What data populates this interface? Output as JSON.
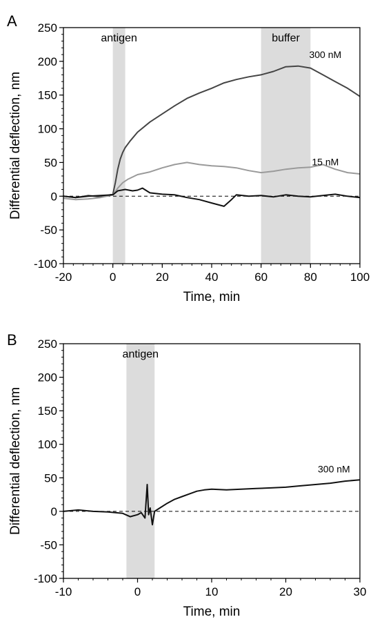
{
  "chart_data": [
    {
      "panel": "A",
      "type": "line",
      "xlabel": "Time, min",
      "ylabel": "Differential deflection, nm",
      "xlim": [
        -20,
        100
      ],
      "ylim": [
        -100,
        250
      ],
      "xticks": [
        -20,
        0,
        20,
        40,
        60,
        80,
        100
      ],
      "yticks": [
        -100,
        -50,
        0,
        50,
        100,
        150,
        200,
        250
      ],
      "baseline": 0,
      "bands": [
        {
          "label": "antigen",
          "x0": 0,
          "x1": 5
        },
        {
          "label": "buffer",
          "x0": 60,
          "x1": 80
        }
      ],
      "series": [
        {
          "name": "300 nM",
          "color": "#444444",
          "x": [
            -20,
            -15,
            -10,
            -5,
            0,
            1,
            2,
            3,
            4,
            5,
            7,
            10,
            15,
            20,
            25,
            30,
            35,
            40,
            45,
            50,
            55,
            60,
            65,
            70,
            75,
            80,
            85,
            90,
            95,
            100
          ],
          "y": [
            0,
            -2,
            1,
            -1,
            3,
            20,
            40,
            55,
            65,
            72,
            82,
            95,
            110,
            122,
            134,
            145,
            153,
            160,
            168,
            173,
            177,
            180,
            185,
            192,
            193,
            190,
            180,
            170,
            160,
            148
          ]
        },
        {
          "name": "15 nM",
          "color": "#9a9a9a",
          "x": [
            -20,
            -15,
            -10,
            -5,
            0,
            2,
            4,
            6,
            10,
            15,
            20,
            25,
            30,
            35,
            40,
            45,
            50,
            55,
            60,
            65,
            70,
            75,
            80,
            85,
            90,
            95,
            100
          ],
          "y": [
            -3,
            -5,
            -4,
            -2,
            2,
            12,
            20,
            25,
            32,
            36,
            42,
            47,
            50,
            47,
            45,
            44,
            42,
            38,
            35,
            37,
            40,
            42,
            43,
            47,
            40,
            35,
            33
          ]
        },
        {
          "name": "",
          "color": "#111111",
          "x": [
            -20,
            -15,
            -10,
            -5,
            0,
            2,
            5,
            8,
            10,
            12,
            15,
            20,
            25,
            30,
            35,
            40,
            45,
            48,
            50,
            55,
            60,
            65,
            70,
            75,
            80,
            85,
            90,
            95,
            100
          ],
          "y": [
            0,
            -2,
            0,
            1,
            2,
            8,
            10,
            8,
            9,
            12,
            5,
            3,
            2,
            -2,
            -5,
            -10,
            -15,
            -5,
            2,
            0,
            1,
            -1,
            2,
            0,
            -1,
            1,
            3,
            0,
            -2
          ]
        }
      ]
    },
    {
      "panel": "B",
      "type": "line",
      "xlabel": "Time, min",
      "ylabel": "Differential deflection, nm",
      "xlim": [
        -10,
        30
      ],
      "ylim": [
        -100,
        250
      ],
      "xticks": [
        -10,
        0,
        10,
        20,
        30
      ],
      "yticks": [
        -100,
        -50,
        0,
        50,
        100,
        150,
        200,
        250
      ],
      "baseline": 0,
      "bands": [
        {
          "label": "antigen",
          "x0": -1.5,
          "x1": 2.3
        }
      ],
      "series": [
        {
          "name": "300 nM",
          "color": "#111111",
          "x": [
            -10,
            -8,
            -6,
            -4,
            -2,
            -1,
            0,
            0.5,
            1,
            1.3,
            1.5,
            1.7,
            2,
            2.3,
            3,
            4,
            5,
            6,
            7,
            8,
            9,
            10,
            12,
            14,
            16,
            18,
            20,
            22,
            24,
            26,
            28,
            30
          ],
          "y": [
            0,
            2,
            0,
            -1,
            -3,
            -8,
            -5,
            -2,
            -10,
            40,
            -5,
            5,
            -20,
            0,
            5,
            12,
            18,
            22,
            26,
            30,
            32,
            33,
            32,
            33,
            34,
            35,
            36,
            38,
            40,
            42,
            45,
            47
          ]
        }
      ]
    }
  ]
}
